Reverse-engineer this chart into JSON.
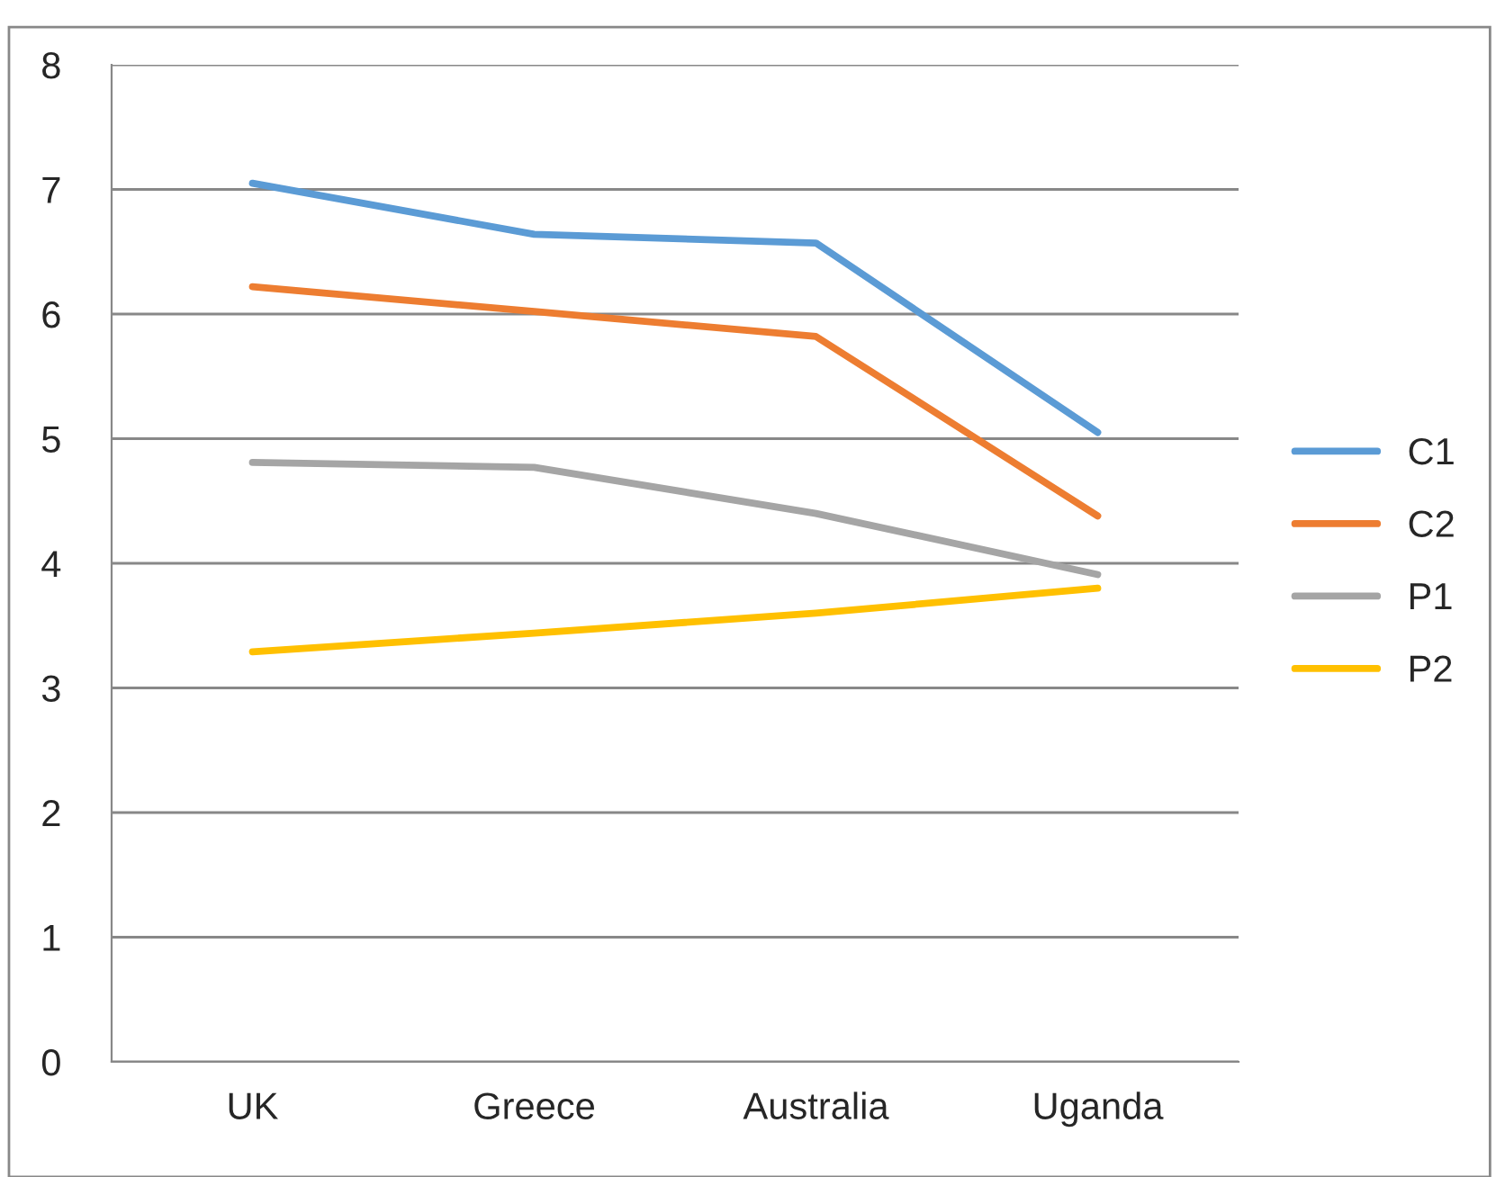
{
  "chart_data": {
    "type": "line",
    "categories": [
      "UK",
      "Greece",
      "Australia",
      "Uganda"
    ],
    "series": [
      {
        "name": "C1",
        "color": "#5b9bd5",
        "values": [
          7.05,
          6.64,
          6.57,
          5.05
        ]
      },
      {
        "name": "C2",
        "color": "#ed7d31",
        "values": [
          6.22,
          6.02,
          5.82,
          4.38
        ]
      },
      {
        "name": "P1",
        "color": "#a5a5a5",
        "values": [
          4.81,
          4.77,
          4.4,
          3.91
        ]
      },
      {
        "name": "P2",
        "color": "#ffc000",
        "values": [
          3.29,
          3.44,
          3.6,
          3.8
        ]
      }
    ],
    "ylim": [
      0,
      8
    ],
    "yticks": [
      0,
      1,
      2,
      3,
      4,
      5,
      6,
      7,
      8
    ],
    "grid": "y",
    "legend": "right",
    "marker": "none",
    "line_style": "solid"
  }
}
